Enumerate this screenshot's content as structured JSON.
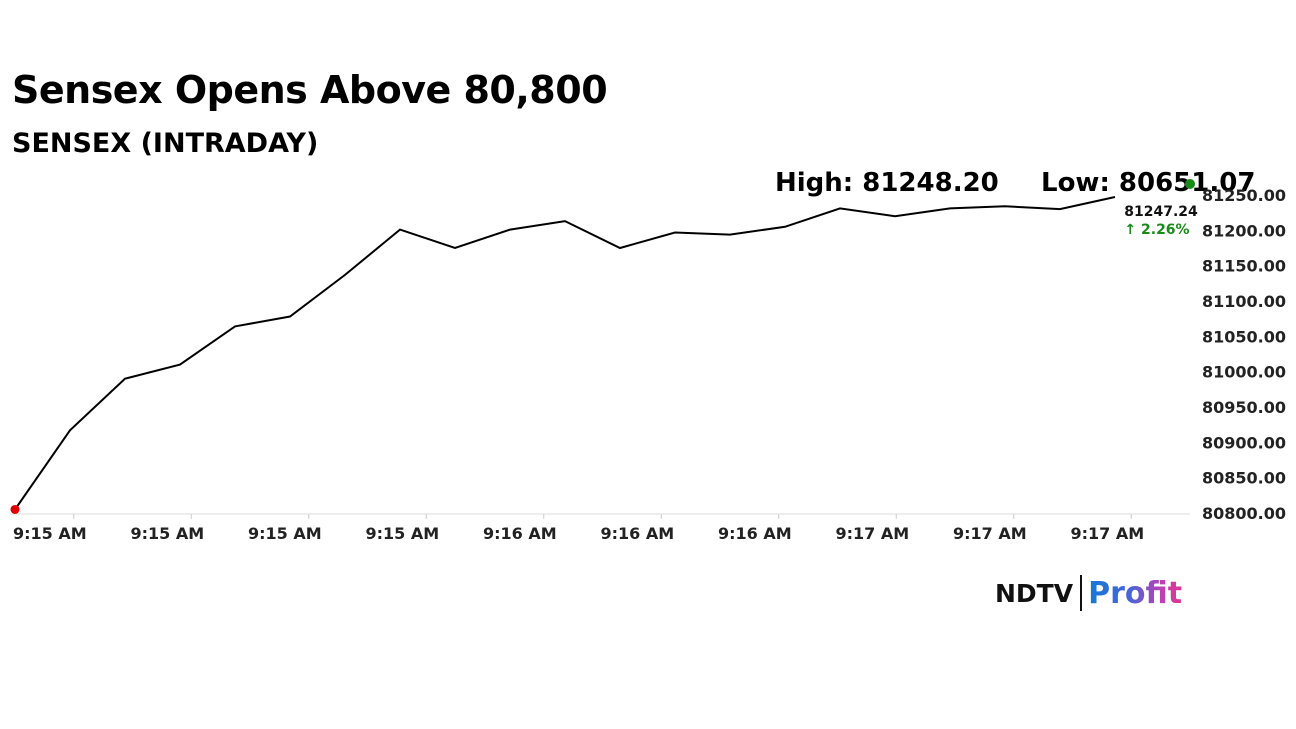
{
  "headline": "Sensex Opens Above 80,800",
  "subheadline": "SENSEX (INTRADAY)",
  "stats": {
    "high": "High: 81248.20",
    "low": "Low: 80651.07"
  },
  "last_value_label": "81247.24",
  "change_label": "↑ 2.26%",
  "brand": {
    "name_left": "NDTV",
    "name_right": "Profit"
  },
  "colors": {
    "line": "#000000",
    "start_marker": "#e00000",
    "end_marker": "#1a8a1a",
    "change_text": "#1a8a1a",
    "axis_text": "#222222"
  },
  "chart_data": {
    "type": "line",
    "title": "SENSEX (INTRADAY)",
    "x_ticks": [
      "9:15 AM",
      "9:15 AM",
      "9:15 AM",
      "9:15 AM",
      "9:16 AM",
      "9:16 AM",
      "9:16 AM",
      "9:17 AM",
      "9:17 AM",
      "9:17 AM"
    ],
    "y_ticks": [
      "80800.00",
      "80850.00",
      "80900.00",
      "80950.00",
      "81000.00",
      "81050.00",
      "81100.00",
      "81150.00",
      "81200.00",
      "81250.00"
    ],
    "ylim": [
      80800,
      81250
    ],
    "series": [
      {
        "values": [
          80805,
          80917,
          80990,
          81010,
          81064,
          81078,
          81137,
          81201,
          81175,
          81201,
          81213,
          81175,
          81197,
          81194,
          81205,
          81231,
          81220,
          81231,
          81234,
          81230,
          81247.24
        ]
      }
    ],
    "grid": false
  }
}
